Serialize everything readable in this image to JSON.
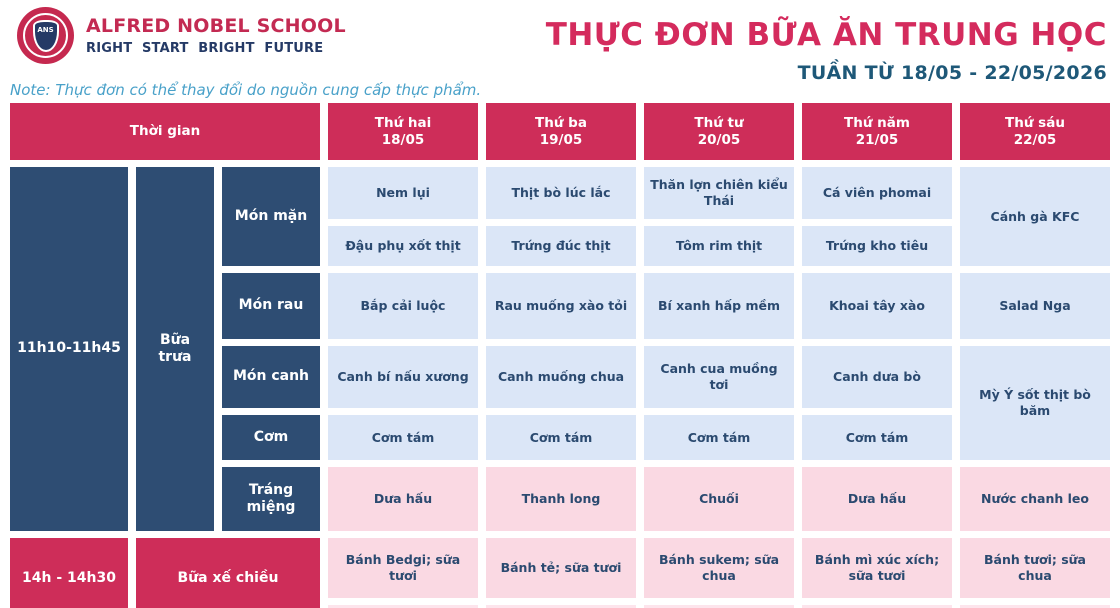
{
  "header": {
    "logo_text": "ANS",
    "school_name": "ALFRED NOBEL SCHOOL",
    "school_tagline": "RIGHT START BRIGHT FUTURE",
    "title": "THỰC ĐƠN BỮA ĂN TRUNG HỌC",
    "subtitle": "TUẦN TỪ 18/05 - 22/05/2026",
    "note": "Note: Thực đơn có thể thay đổi do nguồn cung cấp thực phẩm."
  },
  "colors": {
    "crimson": "#ce2d59",
    "navy": "#2e4d73",
    "light_blue_cell": "#dbe6f7",
    "pink_cell": "#fad9e3",
    "cell_text": "#2b4a70"
  },
  "table": {
    "time_header": "Thời gian",
    "days": [
      {
        "name": "Thứ hai",
        "date": "18/05"
      },
      {
        "name": "Thứ ba",
        "date": "19/05"
      },
      {
        "name": "Thứ tư",
        "date": "20/05"
      },
      {
        "name": "Thứ năm",
        "date": "21/05"
      },
      {
        "name": "Thứ sáu",
        "date": "22/05"
      }
    ],
    "lunch": {
      "time": "11h10-11h45",
      "label": "Bữa trưa",
      "man": {
        "label": "Món mặn",
        "line1": [
          "Nem lụi",
          "Thịt bò lúc lắc",
          "Thăn lợn chiên kiểu Thái",
          "Cá viên phomai"
        ],
        "line2": [
          "Đậu phụ xốt thịt",
          "Trứng đúc thịt",
          "Tôm rim thịt",
          "Trứng kho tiêu"
        ],
        "friday": "Cánh gà KFC"
      },
      "rau": {
        "label": "Món rau",
        "items": [
          "Bắp cải luộc",
          "Rau muống xào tỏi",
          "Bí xanh hấp mềm",
          "Khoai tây xào",
          "Salad Nga"
        ]
      },
      "canh": {
        "label": "Món canh",
        "items": [
          "Canh bí nấu xương",
          "Canh muống chua",
          "Canh cua muồng tơi",
          "Canh dưa bò"
        ],
        "friday": "Mỳ Ý sốt thịt bò băm"
      },
      "com": {
        "label": "Cơm",
        "items": [
          "Cơm tám",
          "Cơm tám",
          "Cơm tám",
          "Cơm tám"
        ]
      },
      "trangmieng": {
        "label": "Tráng miệng",
        "items": [
          "Dưa hấu",
          "Thanh long",
          "Chuối",
          "Dưa hấu",
          "Nước chanh leo"
        ]
      }
    },
    "snack": {
      "time": "14h - 14h30",
      "label": "Bữa xế chiều",
      "items": [
        "Bánh Bedgi; sữa tươi",
        "Bánh tẻ; sữa tươi",
        "Bánh sukem; sữa chua",
        "Bánh mì xúc xích; sữa tươi",
        "Bánh tươi; sữa chua"
      ]
    }
  }
}
